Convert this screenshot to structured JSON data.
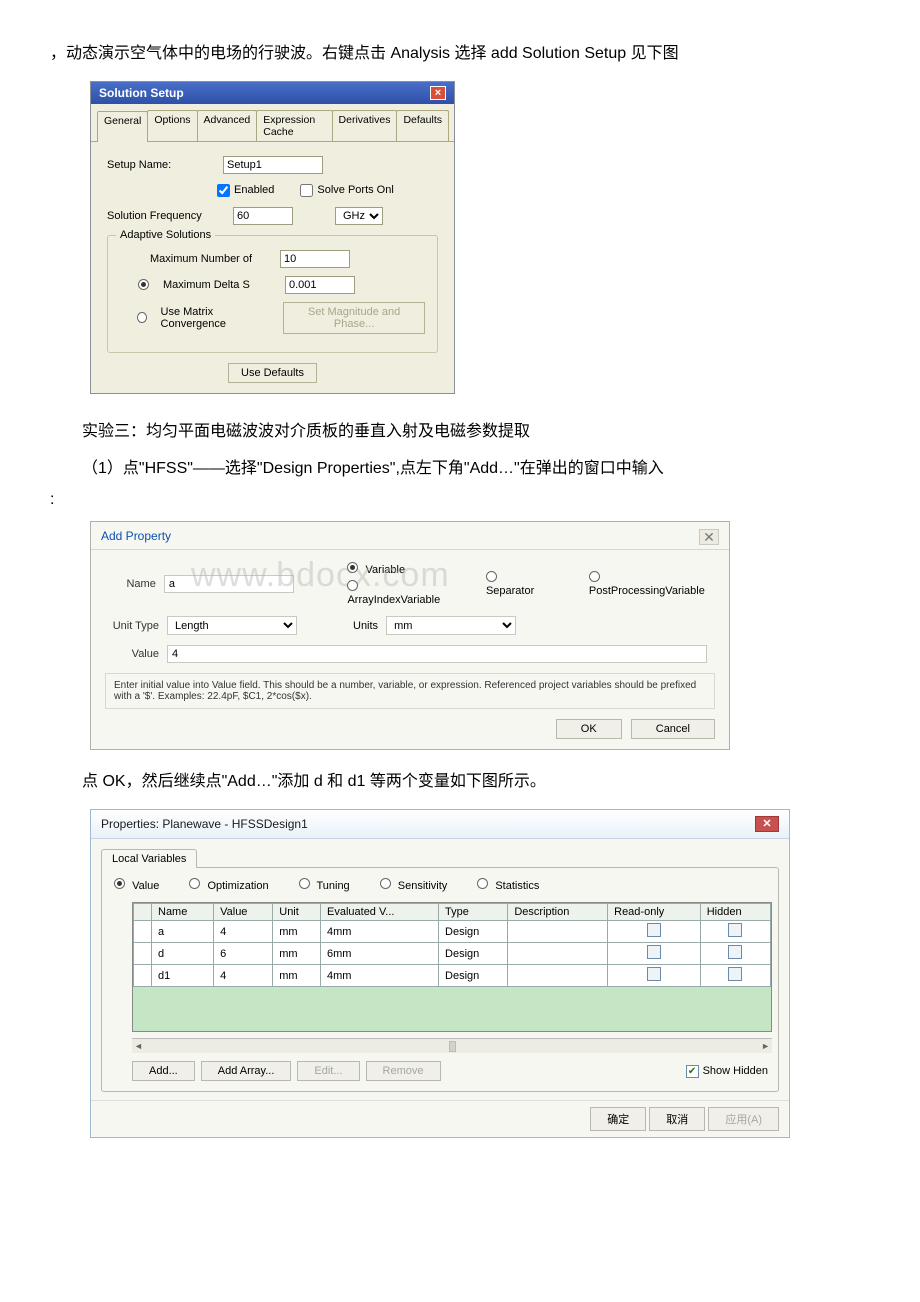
{
  "text": {
    "intro": "，动态演示空气体中的电场的行驶波。右键点击 Analysis 选择 add Solution Setup 见下图",
    "heading3": "实验三：均匀平面电磁波波对介质板的垂直入射及电磁参数提取",
    "step1": "（1）点\"HFSS\"——选择\"Design Properties\",点左下角\"Add…\"在弹出的窗口中输入",
    "colon": ":",
    "step2": "点 OK，然后继续点\"Add…\"添加 d 和 d1 等两个变量如下图所示。"
  },
  "dlg1": {
    "title": "Solution Setup",
    "tabs": [
      "General",
      "Options",
      "Advanced",
      "Expression Cache",
      "Derivatives",
      "Defaults"
    ],
    "setup_name_label": "Setup Name:",
    "setup_name_value": "Setup1",
    "enabled_label": "Enabled",
    "solve_ports_label": "Solve Ports Onl",
    "solution_freq_label": "Solution Frequency",
    "solution_freq_value": "60",
    "solution_freq_unit": "GHz",
    "adaptive_legend": "Adaptive Solutions",
    "max_num_label": "Maximum Number of",
    "max_num_value": "10",
    "max_delta_label": "Maximum Delta S",
    "max_delta_value": "0.001",
    "use_matrix_label": "Use Matrix Convergence",
    "set_mag_btn": "Set Magnitude and Phase...",
    "use_defaults_btn": "Use Defaults"
  },
  "dlg2": {
    "title": "Add Property",
    "name_label": "Name",
    "name_value": "a",
    "radio_variable": "Variable",
    "radio_arrayindex": "ArrayIndexVariable",
    "radio_separator": "Separator",
    "radio_postproc": "PostProcessingVariable",
    "unittype_label": "Unit Type",
    "unittype_value": "Length",
    "units_label": "Units",
    "units_value": "mm",
    "value_label": "Value",
    "value_value": "4",
    "hint": "Enter initial value into Value field. This should be a number, variable, or expression. Referenced project variables should be prefixed with a '$'. Examples: 22.4pF, $C1, 2*cos($x).",
    "ok": "OK",
    "cancel": "Cancel",
    "watermark": "www.bdocx.com"
  },
  "dlg3": {
    "title": "Properties: Planewave - HFSSDesign1",
    "tab": "Local Variables",
    "radios": [
      "Value",
      "Optimization",
      "Tuning",
      "Sensitivity",
      "Statistics"
    ],
    "columns": [
      "Name",
      "Value",
      "Unit",
      "Evaluated V...",
      "Type",
      "Description",
      "Read-only",
      "Hidden"
    ],
    "rows": [
      {
        "name": "a",
        "value": "4",
        "unit": "mm",
        "evaluated": "4mm",
        "type": "Design"
      },
      {
        "name": "d",
        "value": "6",
        "unit": "mm",
        "evaluated": "6mm",
        "type": "Design"
      },
      {
        "name": "d1",
        "value": "4",
        "unit": "mm",
        "evaluated": "4mm",
        "type": "Design"
      }
    ],
    "btn_add": "Add...",
    "btn_addarray": "Add Array...",
    "btn_edit": "Edit...",
    "btn_remove": "Remove",
    "show_hidden": "Show Hidden",
    "ok": "确定",
    "cancel": "取消",
    "apply": "应用(A)"
  },
  "colors": {
    "dlg1_bg": "#f0eedf",
    "dlg1_title_bg": "#3a5db4",
    "dlg2_bg": "#f7f7f2",
    "dlg3_table_bg": "#c5e6c5"
  }
}
